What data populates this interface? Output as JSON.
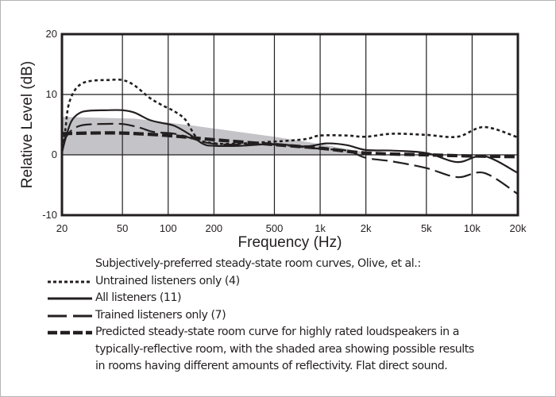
{
  "chart_data": {
    "type": "line",
    "xscale": "log",
    "xlabel": "Frequency (Hz)",
    "ylabel": "Relative Level (dB)",
    "xlim": [
      20,
      20000
    ],
    "ylim": [
      -10,
      20
    ],
    "x_ticks": [
      20,
      50,
      100,
      200,
      500,
      1000,
      2000,
      5000,
      10000,
      20000
    ],
    "x_tick_labels": [
      "20",
      "50",
      "100",
      "200",
      "500",
      "1k",
      "2k",
      "5k",
      "10k",
      "20k"
    ],
    "y_ticks": [
      20,
      10,
      0,
      -10
    ],
    "y_tick_labels": [
      "20",
      "10",
      "0",
      "-10"
    ],
    "grid": true,
    "shaded_area": {
      "description": "possible results in rooms having different amounts of reflectivity",
      "lower": [
        [
          20,
          0
        ],
        [
          20000,
          0
        ]
      ],
      "upper": [
        [
          20,
          6.3
        ],
        [
          60,
          6.0
        ],
        [
          150,
          4.8
        ],
        [
          500,
          3.0
        ],
        [
          1000,
          1.8
        ],
        [
          2000,
          0.4
        ]
      ],
      "color": "#c4c4c8"
    },
    "series": [
      {
        "name": "Untrained listeners only (4)",
        "style": "dotted",
        "points": [
          [
            20,
            1.0
          ],
          [
            21,
            4.0
          ],
          [
            22,
            8.0
          ],
          [
            24,
            10.5
          ],
          [
            27,
            11.8
          ],
          [
            32,
            12.3
          ],
          [
            40,
            12.4
          ],
          [
            50,
            12.4
          ],
          [
            60,
            11.5
          ],
          [
            75,
            9.5
          ],
          [
            90,
            8.3
          ],
          [
            110,
            7.2
          ],
          [
            130,
            5.8
          ],
          [
            150,
            3.2
          ],
          [
            170,
            2.2
          ],
          [
            250,
            1.8
          ],
          [
            500,
            2.2
          ],
          [
            800,
            2.6
          ],
          [
            1000,
            3.2
          ],
          [
            1500,
            3.2
          ],
          [
            2000,
            3.0
          ],
          [
            3000,
            3.5
          ],
          [
            5000,
            3.3
          ],
          [
            8000,
            3.0
          ],
          [
            12000,
            4.6
          ],
          [
            20000,
            2.9
          ]
        ]
      },
      {
        "name": "All listeners (11)",
        "style": "solid",
        "points": [
          [
            20,
            0.3
          ],
          [
            21,
            2.5
          ],
          [
            23,
            5.5
          ],
          [
            26,
            6.9
          ],
          [
            30,
            7.3
          ],
          [
            40,
            7.4
          ],
          [
            50,
            7.4
          ],
          [
            60,
            7.0
          ],
          [
            75,
            5.8
          ],
          [
            90,
            5.3
          ],
          [
            110,
            4.8
          ],
          [
            140,
            3.3
          ],
          [
            170,
            1.8
          ],
          [
            200,
            1.5
          ],
          [
            300,
            1.5
          ],
          [
            500,
            1.8
          ],
          [
            800,
            1.4
          ],
          [
            1100,
            1.9
          ],
          [
            1500,
            1.6
          ],
          [
            2000,
            0.8
          ],
          [
            3000,
            0.7
          ],
          [
            5000,
            0.3
          ],
          [
            8000,
            -1.2
          ],
          [
            12000,
            -0.2
          ],
          [
            20000,
            -3.0
          ]
        ]
      },
      {
        "name": "Trained listeners only (7)",
        "style": "long-dash",
        "points": [
          [
            20,
            2.0
          ],
          [
            23,
            4.0
          ],
          [
            27,
            4.9
          ],
          [
            35,
            5.1
          ],
          [
            50,
            5.1
          ],
          [
            65,
            4.5
          ],
          [
            80,
            3.8
          ],
          [
            110,
            3.5
          ],
          [
            140,
            2.8
          ],
          [
            180,
            2.0
          ],
          [
            250,
            1.7
          ],
          [
            500,
            1.7
          ],
          [
            1000,
            1.0
          ],
          [
            1500,
            0.7
          ],
          [
            2000,
            -0.5
          ],
          [
            3000,
            -1.1
          ],
          [
            5000,
            -2.2
          ],
          [
            8000,
            -3.7
          ],
          [
            12000,
            -3.0
          ],
          [
            20000,
            -6.5
          ]
        ]
      },
      {
        "name": "Predicted steady-state room curve for highly rated loudspeakers in a typically-reflective room, with the shaded area showing possible results in rooms having different amounts of reflectivity. Flat direct sound.",
        "style": "heavy-dash",
        "points": [
          [
            20,
            3.5
          ],
          [
            30,
            3.6
          ],
          [
            50,
            3.6
          ],
          [
            100,
            3.2
          ],
          [
            200,
            2.5
          ],
          [
            500,
            1.7
          ],
          [
            1000,
            1.1
          ],
          [
            2000,
            0.3
          ],
          [
            5000,
            0.0
          ],
          [
            10000,
            -0.2
          ],
          [
            20000,
            -0.3
          ]
        ]
      }
    ],
    "legend_placement": "bottom"
  },
  "legend": {
    "heading": "Subjectively-preferred steady-state room curves, Olive, et al.:",
    "items": [
      {
        "label": "Untrained listeners only (4)",
        "style": "dotted"
      },
      {
        "label": "All listeners (11)",
        "style": "solid"
      },
      {
        "label": "Trained listeners only (7)",
        "style": "long-dash"
      },
      {
        "label": "Predicted steady-state room curve for highly rated loudspeakers in a",
        "style": "heavy-dash"
      }
    ],
    "continuation": [
      "typically-reflective room, with the shaded area showing possible results",
      "in rooms having different amounts of reflectivity.  Flat direct sound."
    ]
  },
  "colors": {
    "ink": "#231f20",
    "shade": "#c4c4c8",
    "frame": "#b5b5b5"
  }
}
